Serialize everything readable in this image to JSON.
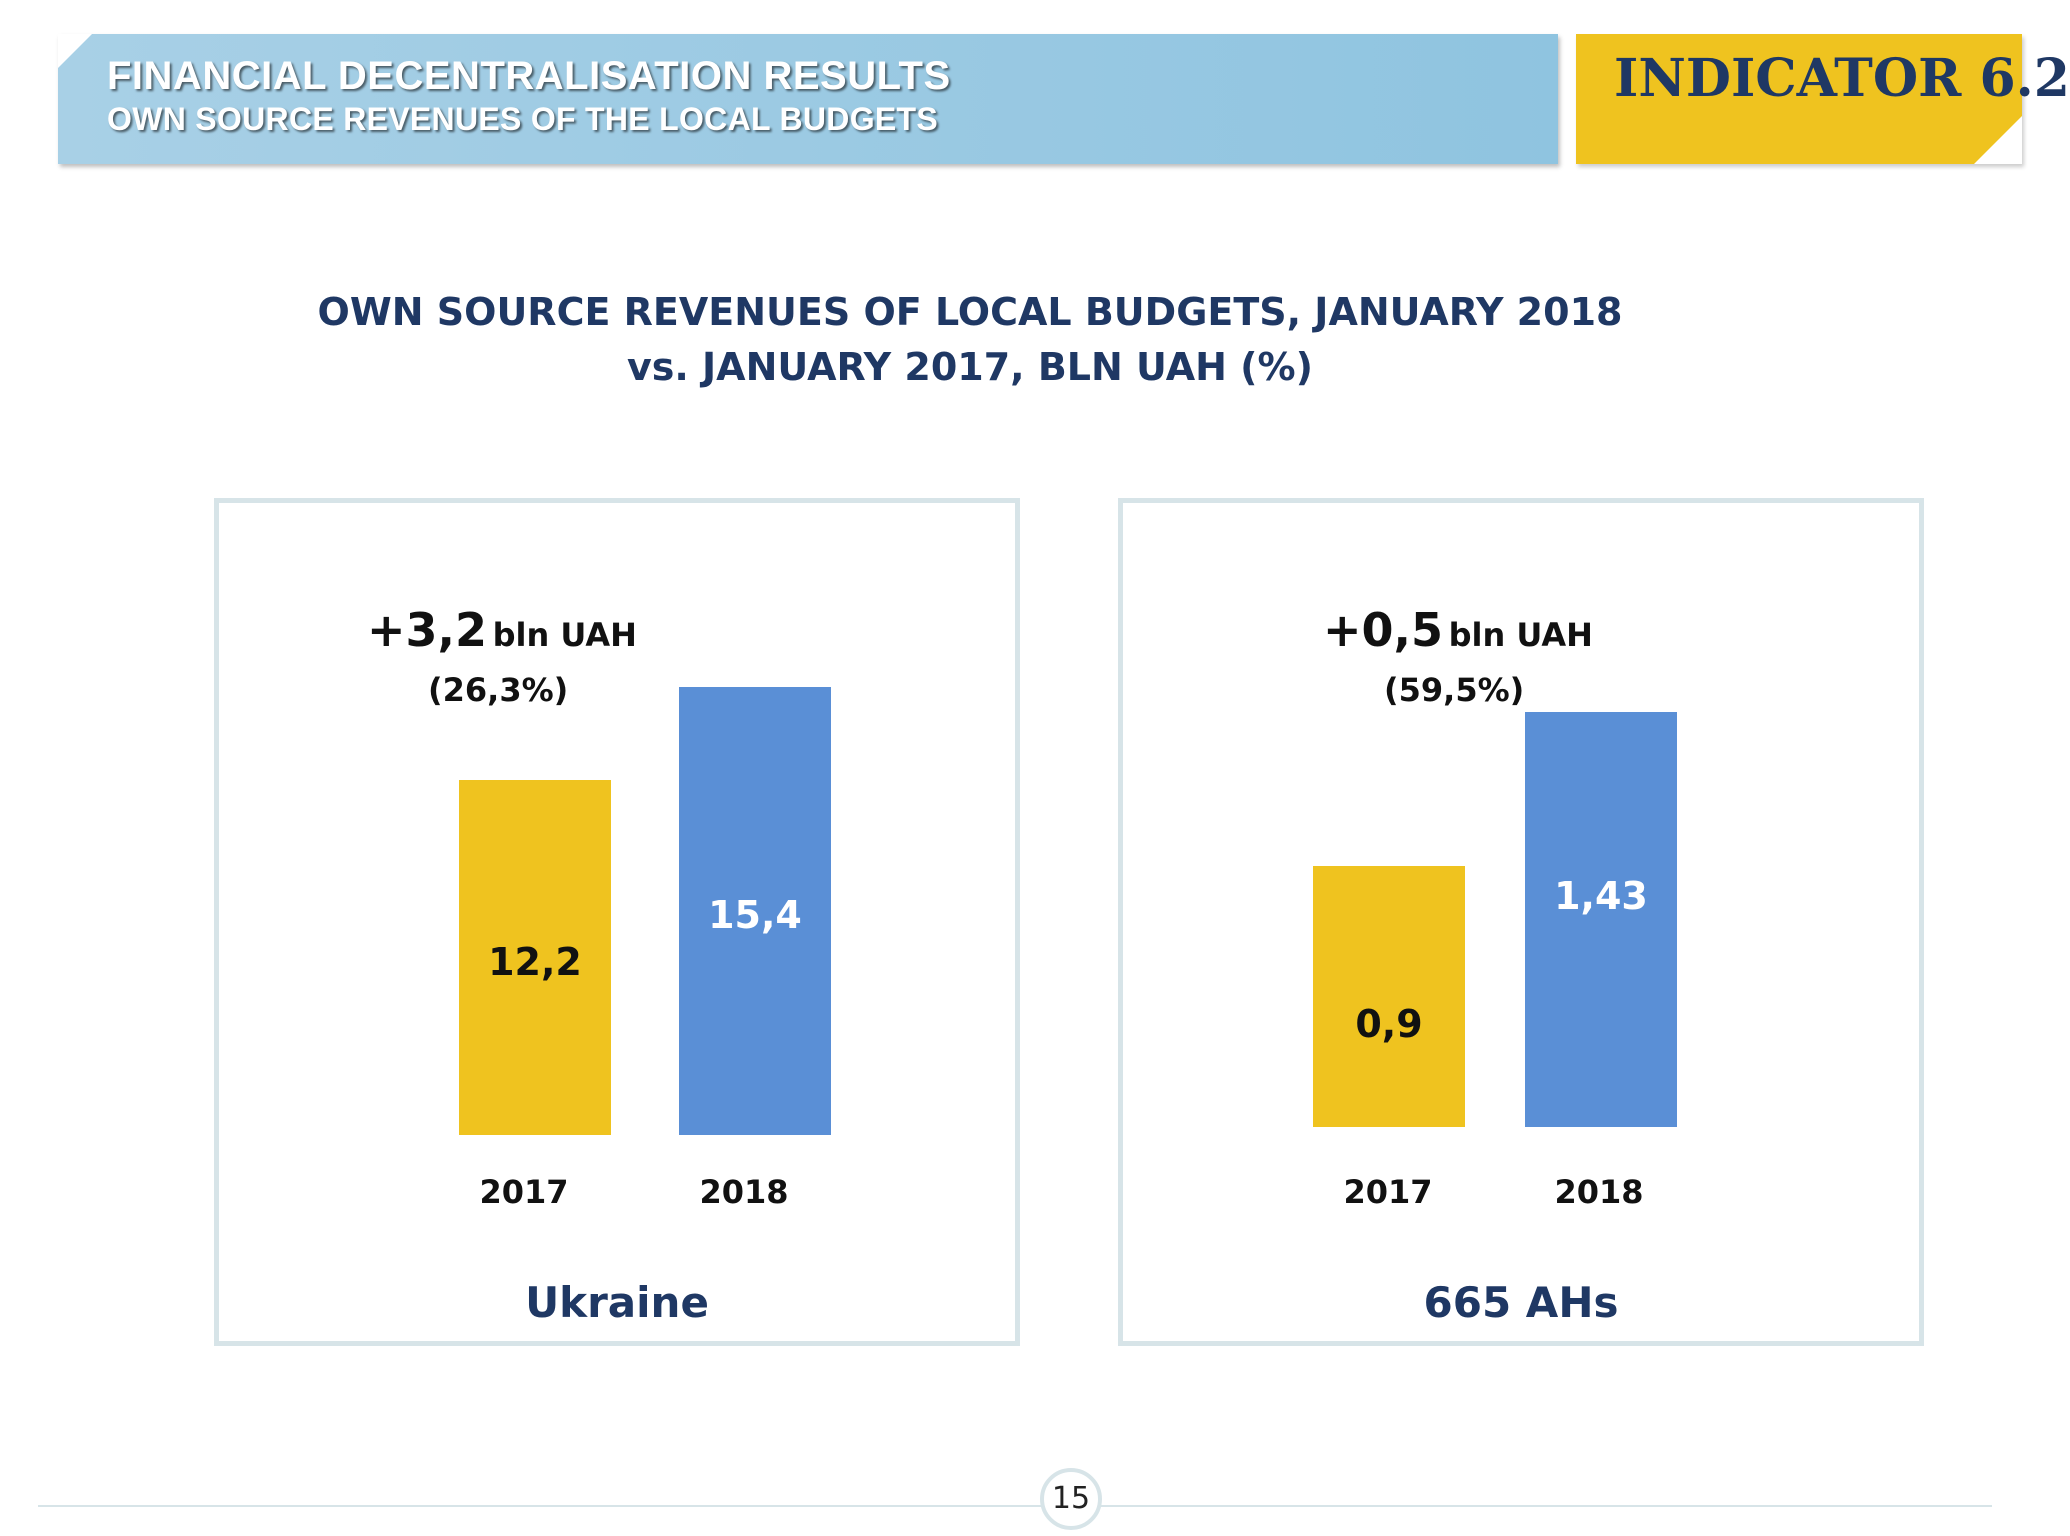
{
  "header": {
    "title": "FINANCIAL DECENTRALISATION RESULTS",
    "subtitle": "OWN SOURCE REVENUES OF THE LOCAL BUDGETS",
    "indicator": "INDICATOR 6.2"
  },
  "colors": {
    "yellow": "#efc31f",
    "blue": "#5a8fd6",
    "navy": "#1f3864",
    "banner": "#8fc4e0"
  },
  "chart_data": [
    {
      "type": "bar",
      "title": "OWN SOURCE REVENUES OF LOCAL BUDGETS, JANUARY 2018 vs. JANUARY 2017, BLN UAH (%)",
      "title_line1": "OWN SOURCE REVENUES OF LOCAL BUDGETS, JANUARY 2018",
      "title_line2": "vs. JANUARY 2017, BLN UAH (%)",
      "panel": "Ukraine",
      "categories": [
        "2017",
        "2018"
      ],
      "values": [
        12.2,
        15.4
      ],
      "value_labels": [
        "12,2",
        "15,4"
      ],
      "change_value": "+3,2",
      "change_unit": "bln UAH",
      "change_pct": "(26,3%)",
      "ylim": [
        0,
        16.5
      ]
    },
    {
      "type": "bar",
      "panel": "665 AHs",
      "categories": [
        "2017",
        "2018"
      ],
      "values": [
        0.9,
        1.43
      ],
      "value_labels": [
        "0,9",
        "1,43"
      ],
      "change_value": "+0,5",
      "change_unit": "bln UAH",
      "change_pct": "(59,5%)",
      "ylim": [
        0,
        1.6
      ]
    }
  ],
  "footer": {
    "page_number": "15"
  }
}
